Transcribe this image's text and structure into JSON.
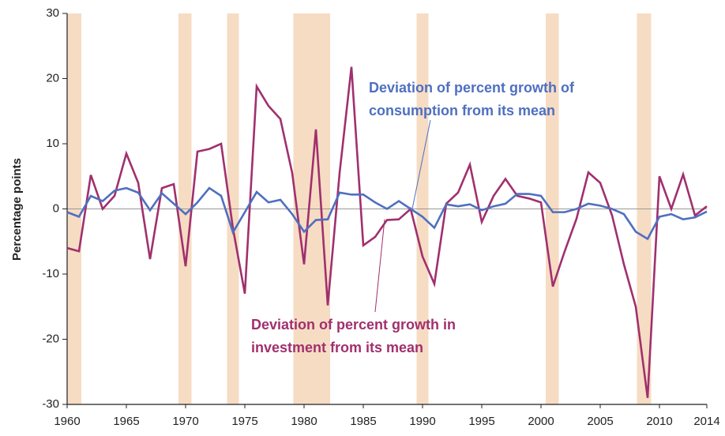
{
  "chart_data": {
    "type": "line",
    "y_label": "Percentage points",
    "x": [
      1960,
      1961,
      1962,
      1963,
      1964,
      1965,
      1966,
      1967,
      1968,
      1969,
      1970,
      1971,
      1972,
      1973,
      1974,
      1975,
      1976,
      1977,
      1978,
      1979,
      1980,
      1981,
      1982,
      1983,
      1984,
      1985,
      1986,
      1987,
      1988,
      1989,
      1990,
      1991,
      1992,
      1993,
      1994,
      1995,
      1996,
      1997,
      1998,
      1999,
      2000,
      2001,
      2002,
      2003,
      2004,
      2005,
      2006,
      2007,
      2008,
      2009,
      2010,
      2011,
      2012,
      2013,
      2014
    ],
    "series": [
      {
        "name": "Deviation of percent growth in investment from its mean",
        "color": "#a0306e",
        "values": [
          -6,
          -6.5,
          5.2,
          0,
          2,
          8.5,
          4,
          -7.7,
          3.2,
          3.8,
          -8.8,
          8.8,
          9.2,
          10,
          -3,
          -13,
          18.8,
          15.8,
          13.8,
          5.5,
          -8.5,
          12.2,
          -14.8,
          5.5,
          21.8,
          -5.6,
          -4.3,
          -1.7,
          -1.6,
          0,
          -7.3,
          -11.5,
          0.8,
          2.5,
          6.8,
          -2,
          2,
          4.6,
          2,
          1.6,
          1,
          -11.9,
          -6.5,
          -1.5,
          5.6,
          4,
          -1,
          -8.5,
          -15,
          -29,
          5,
          0,
          5.3,
          -1,
          0.4
        ]
      },
      {
        "name": "Deviation of percent growth of consumption from its mean",
        "color": "#4f6fc0",
        "values": [
          -0.5,
          -1.2,
          2,
          1.2,
          2.8,
          3.2,
          2.5,
          -0.2,
          2.4,
          0.8,
          -0.8,
          1,
          3.2,
          2,
          -3.6,
          -0.5,
          2.6,
          1,
          1.4,
          -0.8,
          -3.5,
          -1.7,
          -1.6,
          2.5,
          2.2,
          2.2,
          1,
          0,
          1.2,
          0,
          -1.2,
          -2.9,
          0.7,
          0.4,
          0.7,
          -0.2,
          0.4,
          0.8,
          2.3,
          2.3,
          2,
          -0.5,
          -0.5,
          0,
          0.8,
          0.5,
          0,
          -0.8,
          -3.5,
          -4.6,
          -1.2,
          -0.8,
          -1.6,
          -1.3,
          -0.4
        ]
      }
    ],
    "annotations": [
      {
        "lines": [
          "Deviation of percent growth in",
          "investment from its mean"
        ],
        "color": "#a0306e"
      },
      {
        "lines": [
          "Deviation of percent growth of",
          "consumption from its mean"
        ],
        "color": "#4f6fc0"
      }
    ],
    "recessions": [
      [
        1960,
        1961.2
      ],
      [
        1969.4,
        1970.5
      ],
      [
        1973.5,
        1974.5
      ],
      [
        1979.1,
        1982.2
      ],
      [
        1989.5,
        1990.5
      ],
      [
        2000.4,
        2001.5
      ],
      [
        2008.1,
        2009.3
      ]
    ],
    "recession_color": "#f6dcc3",
    "xlim": [
      1960,
      2014
    ],
    "xticks": [
      1960,
      1965,
      1970,
      1975,
      1980,
      1985,
      1990,
      1995,
      2000,
      2005,
      2010,
      2014
    ],
    "ylim": [
      -30,
      30
    ],
    "yticks": [
      -30,
      -20,
      -10,
      0,
      10,
      20,
      30
    ],
    "grid": false
  }
}
